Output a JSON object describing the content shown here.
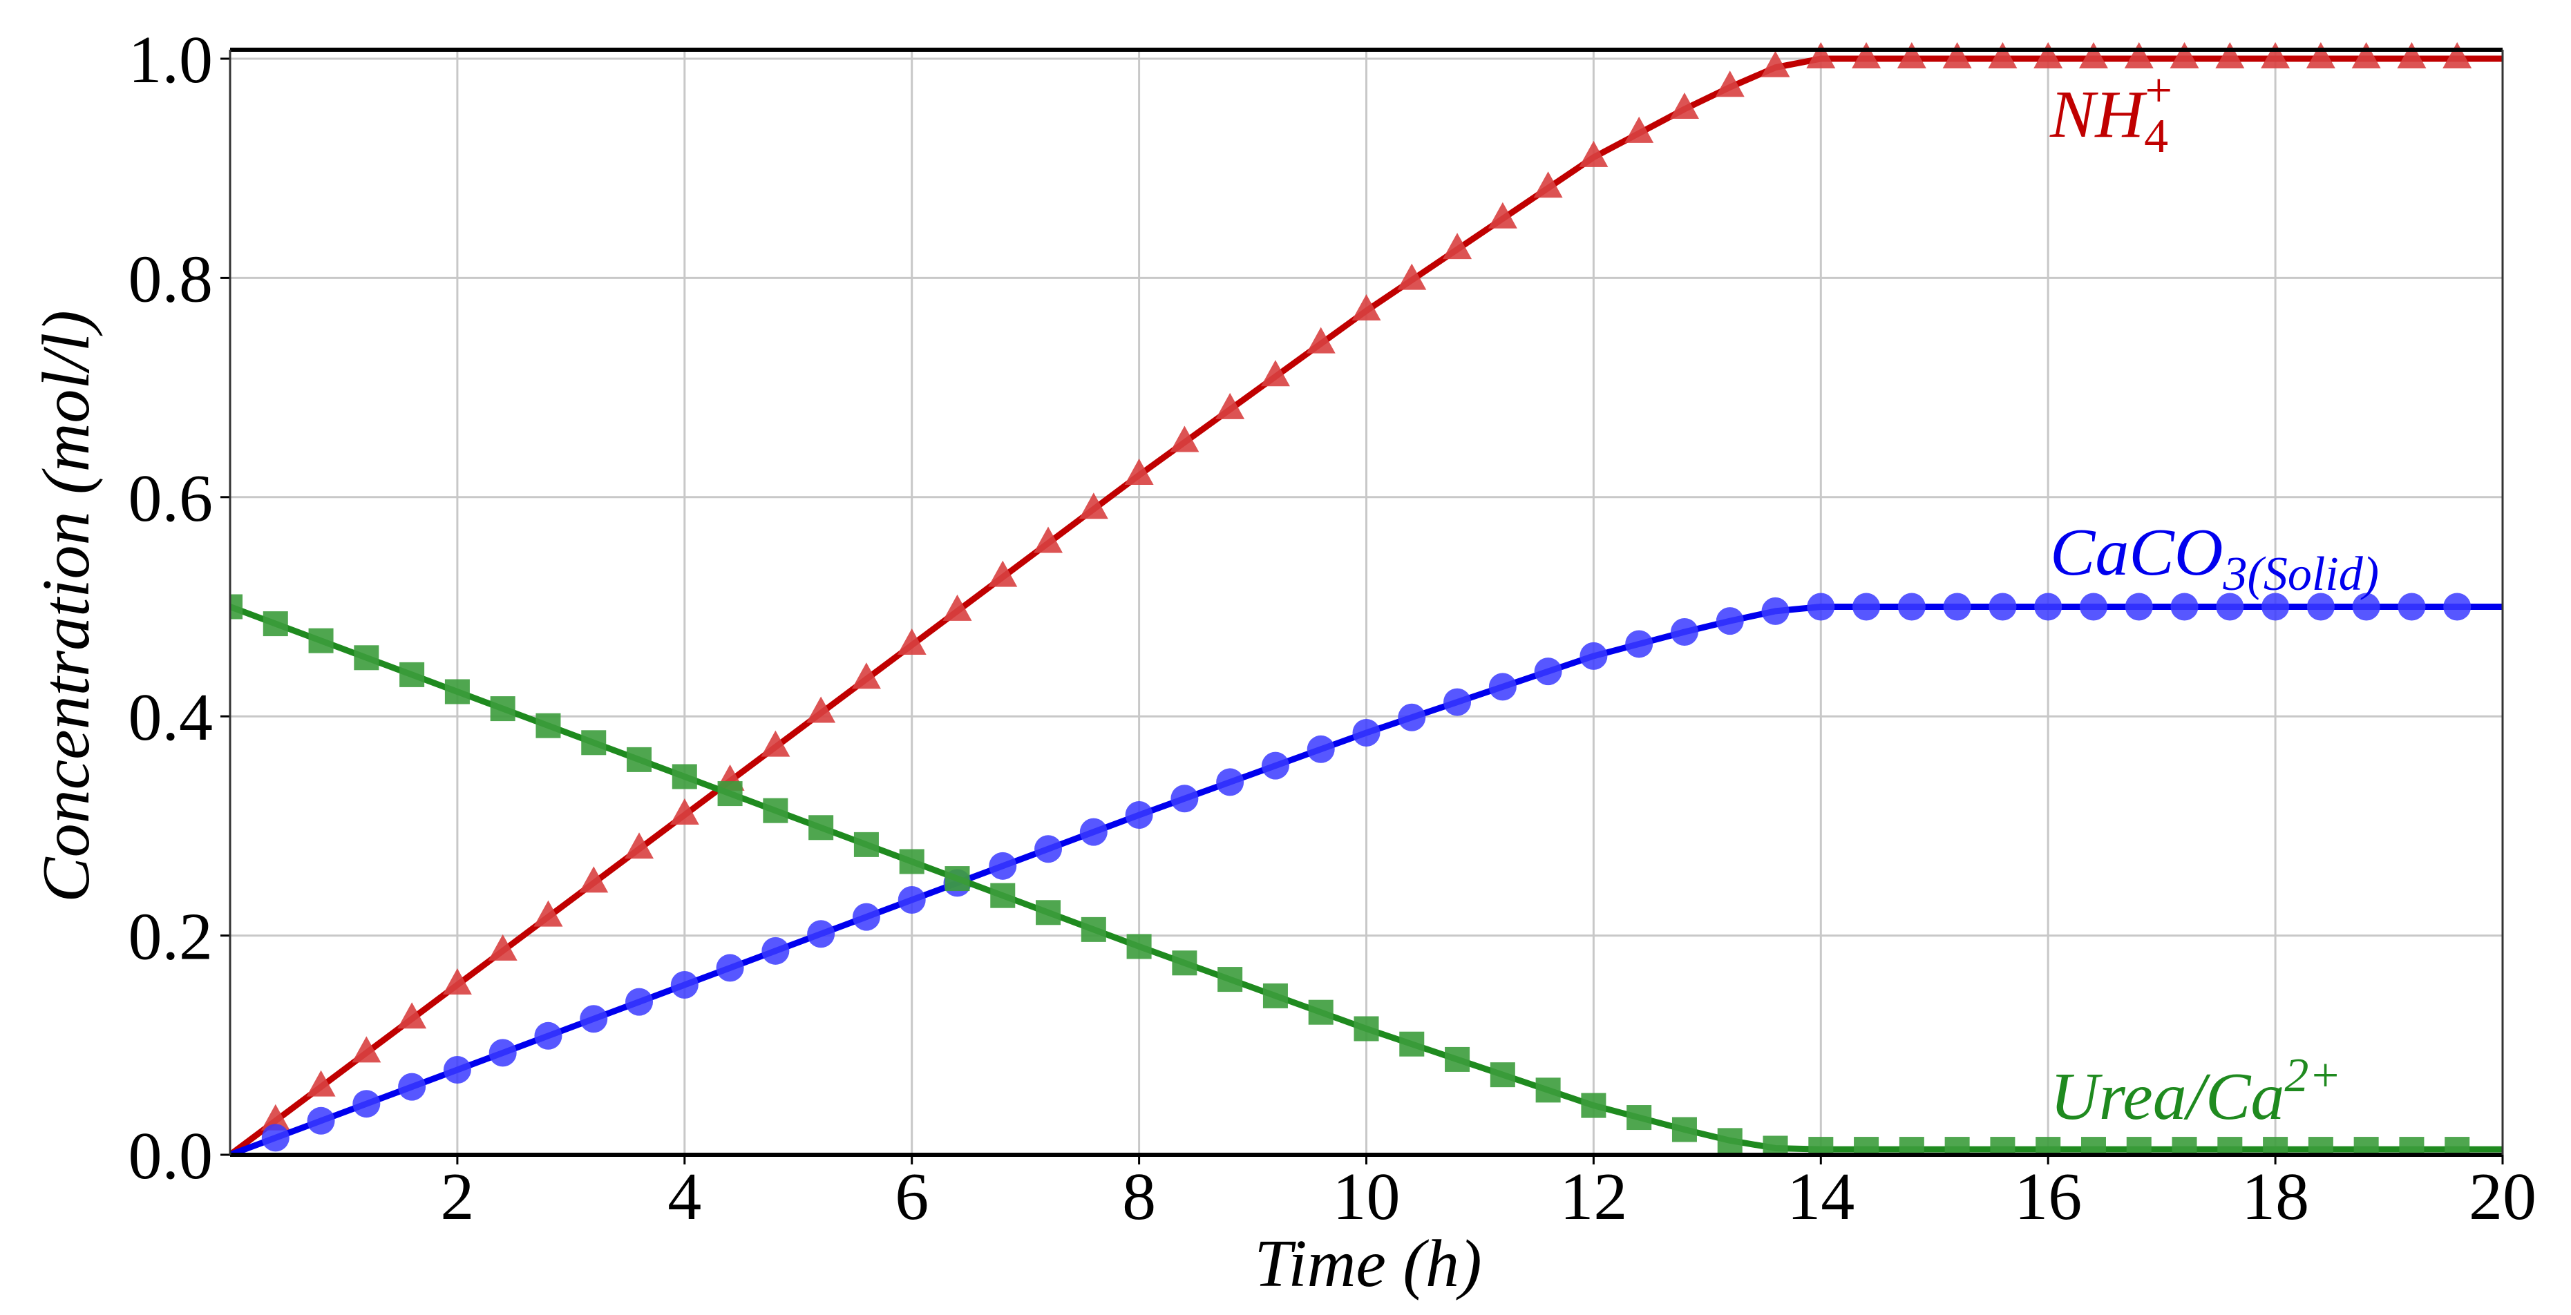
{
  "chart_data": {
    "type": "line",
    "title": "",
    "xlabel": "Time (h)",
    "ylabel": "Concentration (mol/l)",
    "xlim": [
      0,
      20
    ],
    "ylim": [
      0,
      1.0
    ],
    "grid": true,
    "xticks": [
      "2",
      "4",
      "6",
      "8",
      "10",
      "12",
      "14",
      "16",
      "18",
      "20"
    ],
    "xtick_values": [
      2,
      4,
      6,
      8,
      10,
      12,
      14,
      16,
      18,
      20
    ],
    "yticks": [
      "0.0",
      "0.2",
      "0.4",
      "0.6",
      "0.8",
      "1.0"
    ],
    "ytick_values": [
      0,
      0.2,
      0.4,
      0.6,
      0.8,
      1.0
    ],
    "x": [
      0,
      0.4,
      0.8,
      1.2,
      1.6,
      2.0,
      2.4,
      2.8,
      3.2,
      3.6,
      4.0,
      4.4,
      4.8,
      5.2,
      5.6,
      6.0,
      6.4,
      6.8,
      7.2,
      7.6,
      8.0,
      8.4,
      8.8,
      9.2,
      9.6,
      10.0,
      10.4,
      10.8,
      11.2,
      11.6,
      12.0,
      12.4,
      12.8,
      13.2,
      13.6,
      14.0,
      14.4,
      14.8,
      15.2,
      15.6,
      16.0,
      16.4,
      16.8,
      17.2,
      17.6,
      18.0,
      18.4,
      18.8,
      19.2,
      19.6
    ],
    "series": [
      {
        "name": "NH4+",
        "label": {
          "main": "NH",
          "sub": "4",
          "sup": "+"
        },
        "color": "#c00000",
        "marker_color": "#d84040",
        "marker": "triangle",
        "values": [
          0,
          0.031,
          0.062,
          0.093,
          0.124,
          0.155,
          0.186,
          0.217,
          0.248,
          0.279,
          0.31,
          0.341,
          0.372,
          0.403,
          0.434,
          0.465,
          0.496,
          0.527,
          0.558,
          0.589,
          0.62,
          0.65,
          0.68,
          0.71,
          0.74,
          0.77,
          0.798,
          0.826,
          0.854,
          0.882,
          0.91,
          0.932,
          0.954,
          0.974,
          0.992,
          1.0,
          1.0,
          1.0,
          1.0,
          1.0,
          1.0,
          1.0,
          1.0,
          1.0,
          1.0,
          1.0,
          1.0,
          1.0,
          1.0,
          1.0
        ]
      },
      {
        "name": "CaCO3(Solid)",
        "label": {
          "main": "CaCO",
          "sub": "3(Solid)",
          "sup": ""
        },
        "color": "#0000ee",
        "marker_color": "#3a3aff",
        "marker": "circle",
        "values": [
          0,
          0.0155,
          0.031,
          0.0465,
          0.062,
          0.0775,
          0.093,
          0.1085,
          0.124,
          0.1395,
          0.155,
          0.1705,
          0.186,
          0.2015,
          0.217,
          0.2325,
          0.248,
          0.2635,
          0.279,
          0.2945,
          0.31,
          0.325,
          0.34,
          0.355,
          0.37,
          0.385,
          0.399,
          0.413,
          0.427,
          0.441,
          0.455,
          0.466,
          0.477,
          0.487,
          0.496,
          0.5,
          0.5,
          0.5,
          0.5,
          0.5,
          0.5,
          0.5,
          0.5,
          0.5,
          0.5,
          0.5,
          0.5,
          0.5,
          0.5,
          0.5
        ]
      },
      {
        "name": "Urea/Ca2+",
        "label": {
          "main": "Urea/Ca",
          "sub": "",
          "sup": "2+"
        },
        "color": "#1f8a1f",
        "marker_color": "#3c9c3c",
        "marker": "square",
        "values": [
          0.5,
          0.4845,
          0.469,
          0.4535,
          0.438,
          0.4225,
          0.407,
          0.3915,
          0.376,
          0.3605,
          0.345,
          0.3295,
          0.314,
          0.2985,
          0.283,
          0.2675,
          0.252,
          0.2365,
          0.221,
          0.2055,
          0.19,
          0.175,
          0.16,
          0.145,
          0.13,
          0.115,
          0.101,
          0.087,
          0.073,
          0.059,
          0.045,
          0.034,
          0.023,
          0.013,
          0.006,
          0.005,
          0.005,
          0.005,
          0.005,
          0.005,
          0.005,
          0.005,
          0.005,
          0.005,
          0.005,
          0.005,
          0.005,
          0.005,
          0.005,
          0.005
        ]
      }
    ]
  }
}
